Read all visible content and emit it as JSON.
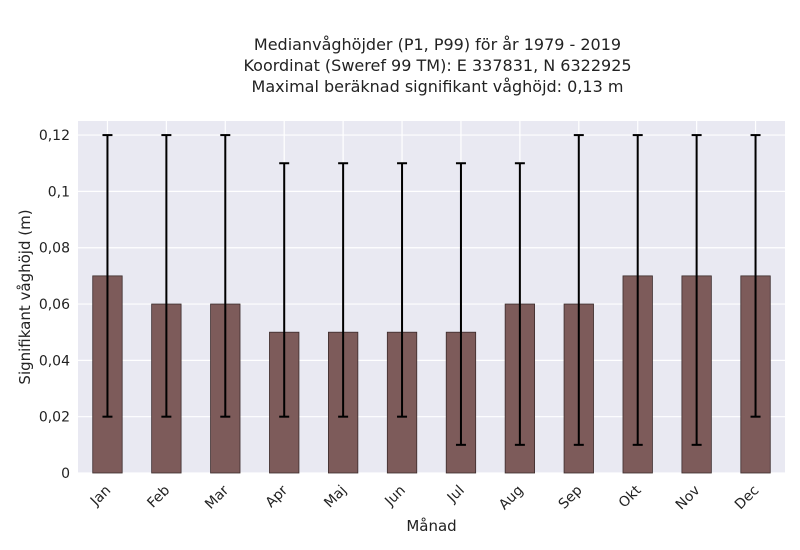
{
  "chart_data": {
    "type": "bar",
    "title_lines": [
      "Medianvåghöjder (P1, P99) för år 1979 - 2019",
      "Koordinat (Sweref 99 TM): E 337831, N 6322925",
      "Maximal beräknad signifikant våghöjd: 0,13 m"
    ],
    "xlabel": "Månad",
    "ylabel": "Signifikant våghöjd (m)",
    "ylim": [
      0,
      0.125
    ],
    "yticks": [
      0,
      0.02,
      0.04,
      0.06,
      0.08,
      0.1,
      0.12
    ],
    "ytick_labels": [
      "0",
      "0,02",
      "0,04",
      "0,06",
      "0,08",
      "0,1",
      "0,12"
    ],
    "categories": [
      "Jan",
      "Feb",
      "Mar",
      "Apr",
      "Maj",
      "Jun",
      "Jul",
      "Aug",
      "Sep",
      "Okt",
      "Nov",
      "Dec"
    ],
    "values": [
      0.07,
      0.06,
      0.06,
      0.05,
      0.05,
      0.05,
      0.05,
      0.06,
      0.06,
      0.07,
      0.07,
      0.07
    ],
    "p1": [
      0.02,
      0.02,
      0.02,
      0.02,
      0.02,
      0.02,
      0.01,
      0.01,
      0.01,
      0.01,
      0.01,
      0.02
    ],
    "p99": [
      0.12,
      0.12,
      0.12,
      0.11,
      0.11,
      0.11,
      0.11,
      0.11,
      0.12,
      0.12,
      0.12,
      0.12
    ],
    "grid": true,
    "colors": {
      "bar": "#7d5b5a",
      "bar_edge": "#3b2b2b",
      "errorbar": "#000000",
      "plot_bg": "#e9e9f2",
      "grid": "#ffffff"
    }
  }
}
